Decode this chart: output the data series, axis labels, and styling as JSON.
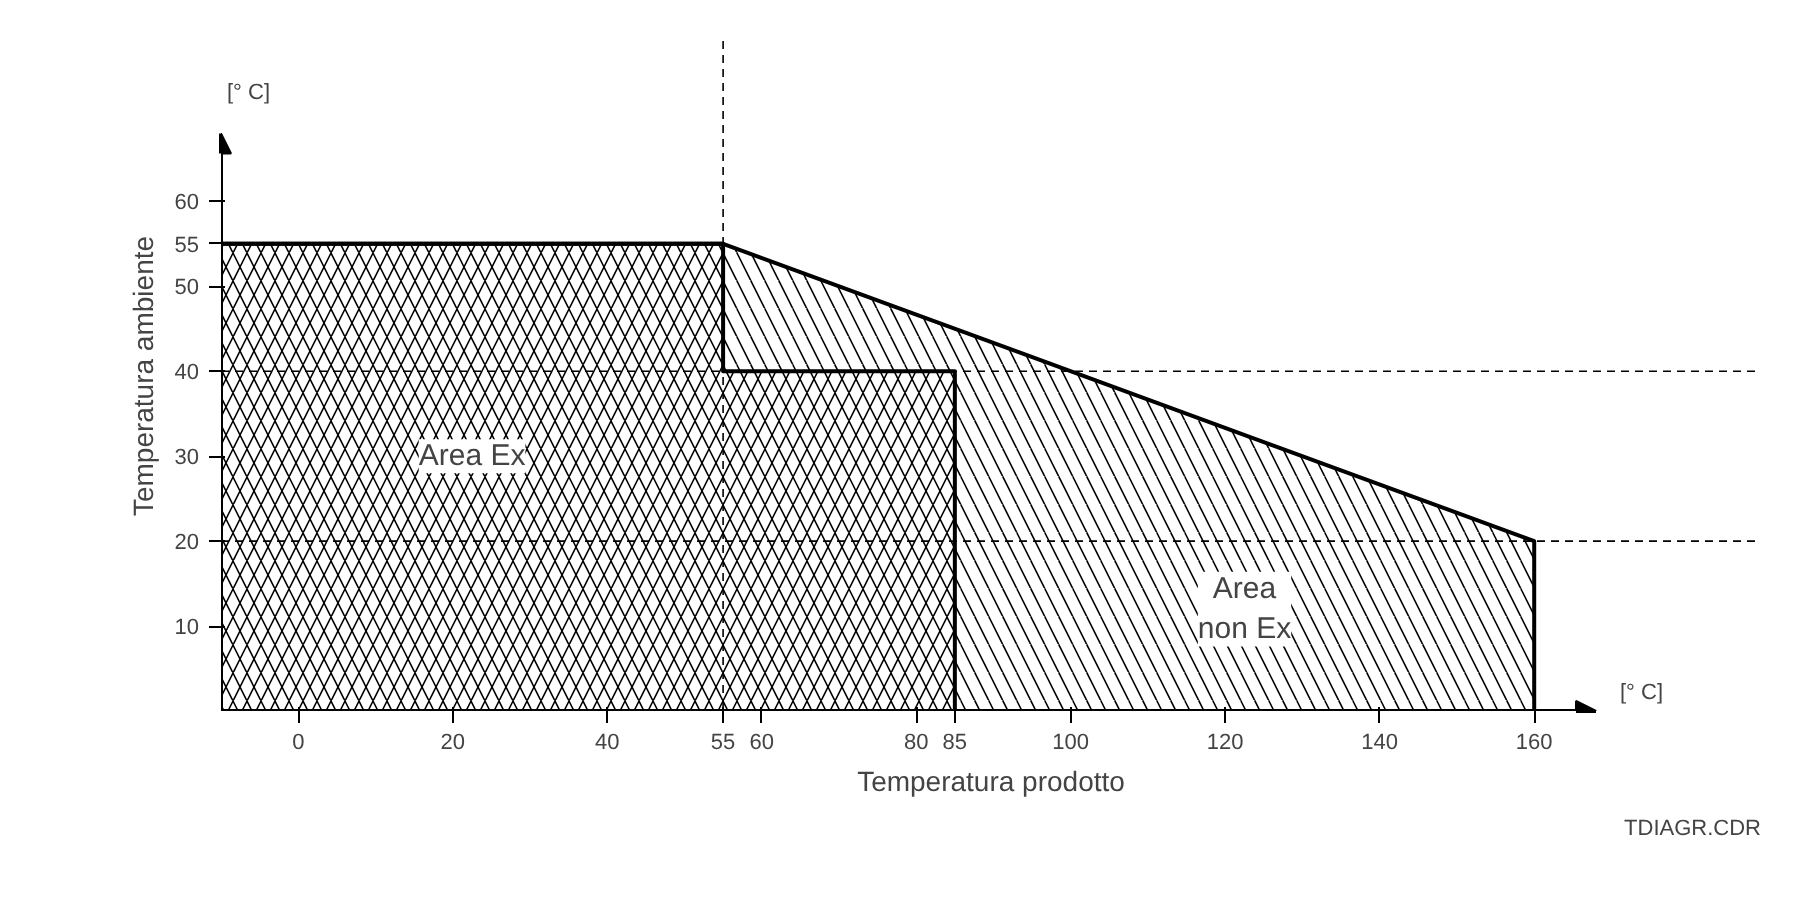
{
  "chart_data": {
    "type": "area",
    "xlabel": "Temperatura prodotto",
    "ylabel": "Temperatura ambiente",
    "series": [
      {
        "x": [
          -10,
          55,
          160
        ],
        "values": [
          55,
          55,
          20
        ],
        "color": "#000000"
      },
      {
        "x": [
          -10,
          55,
          55,
          85,
          85
        ],
        "values": [
          55,
          55,
          40,
          40,
          0
        ],
        "color": "#000000"
      }
    ],
    "xlim": [
      -10,
      168
    ],
    "ylim": [
      0,
      68
    ],
    "xticks": [
      0,
      20,
      40,
      55,
      60,
      80,
      85,
      100,
      120,
      140,
      160
    ],
    "yticks": [
      10,
      20,
      30,
      40,
      50,
      55,
      60
    ],
    "ref_lines": [
      {
        "axis": "y",
        "value": 40,
        "line_style": "dashed"
      },
      {
        "axis": "y",
        "value": 20,
        "line_style": "dashed"
      },
      {
        "axis": "x",
        "value": 55,
        "line_style": "dashed"
      }
    ],
    "annotations": [
      "Area Ex",
      "Area\nnon Ex",
      "[° C]",
      "[° C]",
      "TDIAGR.CDR"
    ],
    "grid": false
  }
}
